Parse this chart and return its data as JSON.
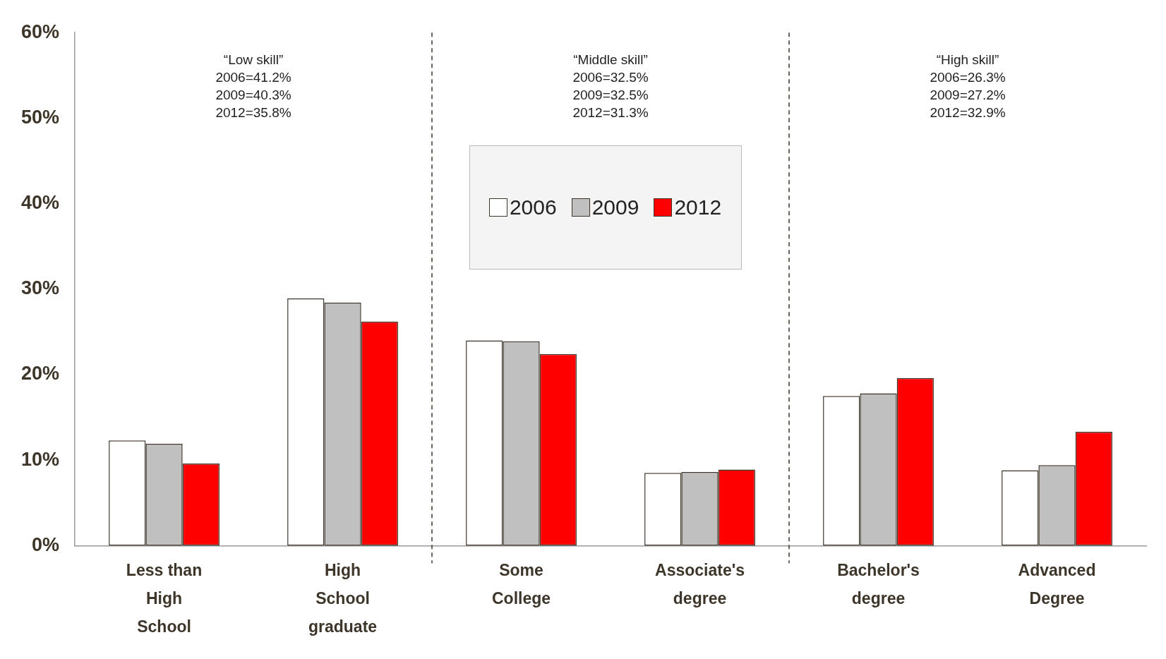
{
  "chart_data": {
    "type": "bar",
    "categories": [
      "Less than High School",
      "High School graduate",
      "Some College",
      "Associate's degree",
      "Bachelor's degree",
      "Advanced Degree"
    ],
    "series": [
      {
        "name": "2006",
        "color": "#ffffff",
        "values": [
          12.3,
          28.9,
          24.0,
          8.5,
          17.5,
          8.8
        ]
      },
      {
        "name": "2009",
        "color": "#c0c0c0",
        "values": [
          11.9,
          28.4,
          23.9,
          8.6,
          17.8,
          9.4
        ]
      },
      {
        "name": "2012",
        "color": "#ff0000",
        "values": [
          9.6,
          26.2,
          22.4,
          8.9,
          19.6,
          13.3
        ]
      }
    ],
    "ylim": [
      0,
      60
    ],
    "yticks": [
      {
        "value": 0,
        "label": "0%"
      },
      {
        "value": 10,
        "label": "10%"
      },
      {
        "value": 20,
        "label": "20%"
      },
      {
        "value": 30,
        "label": "30%"
      },
      {
        "value": 40,
        "label": "40%"
      },
      {
        "value": 50,
        "label": "50%"
      },
      {
        "value": 60,
        "label": "60%"
      }
    ],
    "grid": false,
    "legend": "top",
    "annotations": [
      "“Low skill”\n2006=41.2%\n2009=40.3%\n2012=35.8%",
      "“Middle skill”\n2006=32.5%\n2009=32.5%\n2012=31.3%",
      "“High skill”\n2006=26.3%\n2009=27.2%\n2012=32.9%"
    ]
  }
}
